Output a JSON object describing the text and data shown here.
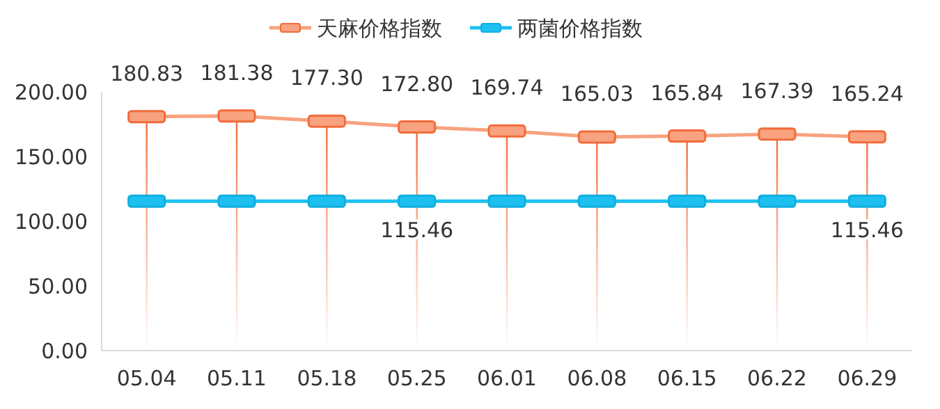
{
  "chart_data": {
    "type": "line",
    "categories": [
      "05.04",
      "05.11",
      "05.18",
      "05.25",
      "06.01",
      "06.08",
      "06.15",
      "06.22",
      "06.29"
    ],
    "series": [
      {
        "name": "天麻价格指数",
        "color": "#f8a27f",
        "values": [
          180.83,
          181.38,
          177.3,
          172.8,
          169.74,
          165.03,
          165.84,
          167.39,
          165.24
        ],
        "value_labels": [
          "180.83",
          "181.38",
          "177.30",
          "172.80",
          "169.74",
          "165.03",
          "165.84",
          "167.39",
          "165.24"
        ]
      },
      {
        "name": "两菌价格指数",
        "color": "#1ec0f0",
        "values": [
          115.46,
          115.46,
          115.46,
          115.46,
          115.46,
          115.46,
          115.46,
          115.46,
          115.46
        ],
        "value_labels": [
          null,
          null,
          null,
          "115.46",
          null,
          null,
          null,
          null,
          "115.46"
        ]
      }
    ],
    "ylim": [
      0,
      200
    ],
    "yticks": [
      {
        "value": 0,
        "label": "0.00"
      },
      {
        "value": 50,
        "label": "50.00"
      },
      {
        "value": 100,
        "label": "100.00"
      },
      {
        "value": 150,
        "label": "150.00"
      },
      {
        "value": 200,
        "label": "200.00"
      }
    ],
    "grid": "x",
    "legend": "top",
    "marker": "square",
    "line_style": "solid"
  }
}
